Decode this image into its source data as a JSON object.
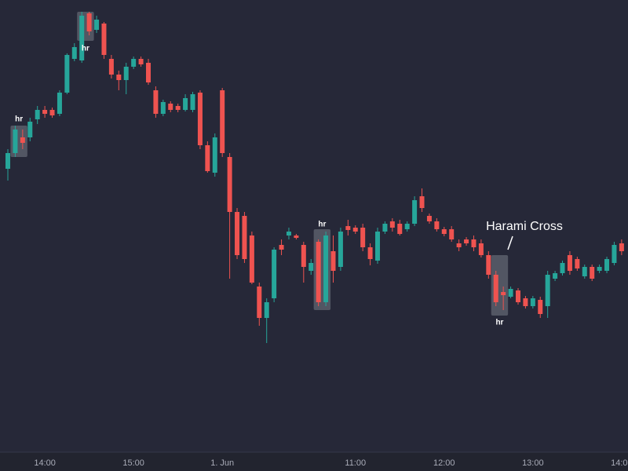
{
  "chart_data": {
    "type": "candlestick",
    "categories": [
      null,
      null,
      null,
      null,
      null,
      "14:00",
      null,
      null,
      null,
      null,
      null,
      null,
      null,
      null,
      null,
      null,
      null,
      "15:00",
      null,
      null,
      null,
      null,
      null,
      null,
      null,
      null,
      null,
      null,
      null,
      "1. Jun",
      null,
      null,
      null,
      null,
      null,
      null,
      null,
      null,
      null,
      null,
      null,
      null,
      null,
      null,
      null,
      null,
      null,
      "11:00",
      null,
      null,
      null,
      null,
      null,
      null,
      null,
      null,
      null,
      null,
      null,
      "12:00",
      null,
      null,
      null,
      null,
      null,
      null,
      null,
      null,
      null,
      null,
      null,
      "13:00",
      null,
      null,
      null,
      null,
      null,
      null,
      null,
      null,
      null,
      null,
      null,
      "14:00"
    ],
    "open": [
      385,
      405,
      425,
      425,
      448,
      460,
      460,
      455,
      482,
      525,
      523,
      583,
      562,
      570,
      525,
      505,
      498,
      515,
      525,
      520,
      485,
      455,
      468,
      465,
      460,
      460,
      482,
      415,
      380,
      485,
      400,
      330,
      325,
      300,
      235,
      195,
      220,
      288,
      300,
      300,
      288,
      255,
      292,
      215,
      280,
      260,
      312,
      310,
      310,
      285,
      268,
      305,
      318,
      315,
      308,
      315,
      350,
      325,
      318,
      308,
      308,
      290,
      295,
      295,
      290,
      275,
      250,
      228,
      222,
      230,
      220,
      210,
      218,
      210,
      245,
      252,
      275,
      270,
      248,
      260,
      255,
      255,
      265,
      290
    ],
    "high": [
      410,
      440,
      435,
      450,
      465,
      465,
      463,
      485,
      532,
      545,
      585,
      585,
      580,
      572,
      530,
      510,
      520,
      528,
      528,
      525,
      490,
      473,
      471,
      468,
      480,
      483,
      485,
      420,
      430,
      488,
      405,
      335,
      330,
      305,
      240,
      220,
      285,
      295,
      310,
      302,
      292,
      270,
      295,
      305,
      300,
      310,
      320,
      313,
      315,
      290,
      310,
      318,
      322,
      320,
      318,
      350,
      360,
      328,
      322,
      311,
      312,
      295,
      298,
      300,
      295,
      280,
      255,
      235,
      235,
      233,
      223,
      223,
      222,
      255,
      255,
      268,
      280,
      273,
      263,
      263,
      263,
      273,
      292,
      295
    ],
    "low": [
      370,
      400,
      410,
      420,
      442,
      450,
      450,
      452,
      480,
      522,
      520,
      555,
      558,
      525,
      500,
      485,
      480,
      512,
      515,
      492,
      450,
      452,
      457,
      457,
      458,
      457,
      410,
      380,
      375,
      400,
      245,
      270,
      265,
      238,
      185,
      163,
      215,
      275,
      295,
      295,
      240,
      250,
      210,
      210,
      240,
      255,
      300,
      302,
      280,
      262,
      264,
      302,
      305,
      300,
      305,
      312,
      330,
      315,
      305,
      299,
      292,
      280,
      287,
      280,
      272,
      245,
      210,
      205,
      220,
      212,
      207,
      207,
      195,
      195,
      242,
      249,
      250,
      255,
      245,
      242,
      252,
      252,
      262,
      275
    ],
    "close": [
      405,
      435,
      418,
      445,
      460,
      455,
      453,
      482,
      530,
      540,
      580,
      560,
      575,
      530,
      505,
      498,
      515,
      525,
      518,
      495,
      455,
      470,
      460,
      460,
      475,
      480,
      415,
      382,
      425,
      405,
      330,
      275,
      270,
      240,
      195,
      215,
      282,
      282,
      305,
      297,
      260,
      265,
      215,
      300,
      255,
      305,
      307,
      305,
      285,
      270,
      305,
      315,
      310,
      302,
      315,
      345,
      335,
      318,
      308,
      302,
      295,
      285,
      290,
      285,
      275,
      250,
      215,
      224,
      232,
      215,
      210,
      220,
      200,
      250,
      252,
      265,
      255,
      258,
      260,
      245,
      260,
      270,
      288,
      280
    ],
    "up_color": "#26a69a",
    "down_color": "#ef5350",
    "ylim": [
      25,
      600
    ],
    "annotations": [
      {
        "text": "hr"
      },
      {
        "text": "hr"
      },
      {
        "text": "hr"
      },
      {
        "text": "hr"
      },
      {
        "text": "Harami Cross"
      }
    ]
  }
}
